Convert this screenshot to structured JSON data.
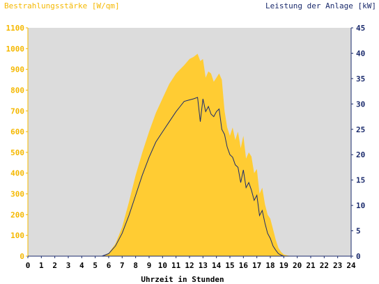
{
  "chart_data": {
    "type": "area",
    "title_left": "Bestrahlungsstärke [W/qm]",
    "title_right": "Leistung der Anlage [kW]",
    "xlabel": "Uhrzeit in Stunden",
    "xlim": [
      0,
      24
    ],
    "ylim_left": [
      0,
      1100
    ],
    "ylim_right": [
      0,
      45
    ],
    "x_ticks": [
      0,
      1,
      2,
      3,
      4,
      5,
      6,
      7,
      8,
      9,
      10,
      11,
      12,
      13,
      14,
      15,
      16,
      17,
      18,
      19,
      20,
      21,
      22,
      23,
      24
    ],
    "y_ticks_left": [
      0,
      100,
      200,
      300,
      400,
      500,
      600,
      700,
      800,
      900,
      1000,
      1100
    ],
    "y_ticks_right": [
      0,
      5,
      10,
      15,
      20,
      25,
      30,
      35,
      40,
      45
    ],
    "grid": false,
    "colors": {
      "irradiance": "#ffcc33",
      "power": "#1a2a6c",
      "plot_bg": "#dcdcdc",
      "left_axis": "#f5b800",
      "right_axis": "#1a2a6c"
    },
    "series": [
      {
        "axis": "left",
        "style": "area",
        "x": [
          0,
          5.5,
          6,
          6.5,
          7,
          7.5,
          8,
          8.5,
          9,
          9.5,
          10,
          10.5,
          11,
          11.3,
          11.6,
          12,
          12.3,
          12.6,
          12.8,
          13,
          13.2,
          13.4,
          13.6,
          13.8,
          14,
          14.2,
          14.4,
          14.6,
          14.8,
          15,
          15.2,
          15.4,
          15.6,
          15.8,
          16,
          16.2,
          16.4,
          16.6,
          16.8,
          17,
          17.2,
          17.4,
          17.6,
          17.8,
          18,
          18.2,
          18.4,
          18.6,
          18.8,
          19,
          19.3,
          19.6,
          20,
          24
        ],
        "values": [
          0,
          0,
          15,
          60,
          140,
          260,
          390,
          500,
          600,
          690,
          760,
          830,
          880,
          900,
          920,
          950,
          960,
          975,
          940,
          950,
          860,
          890,
          880,
          840,
          860,
          880,
          850,
          700,
          620,
          580,
          620,
          560,
          600,
          520,
          580,
          470,
          500,
          480,
          400,
          420,
          300,
          330,
          250,
          200,
          180,
          130,
          80,
          40,
          20,
          8,
          3,
          0,
          0,
          0
        ]
      },
      {
        "axis": "right",
        "style": "line",
        "x": [
          0,
          5.5,
          6,
          6.5,
          7,
          7.5,
          8,
          8.5,
          9,
          9.5,
          10,
          10.5,
          11,
          11.3,
          11.6,
          12,
          12.3,
          12.6,
          12.8,
          13,
          13.2,
          13.4,
          13.6,
          13.8,
          14,
          14.2,
          14.4,
          14.6,
          14.8,
          15,
          15.2,
          15.4,
          15.6,
          15.8,
          16,
          16.2,
          16.4,
          16.6,
          16.8,
          17,
          17.2,
          17.4,
          17.6,
          17.8,
          18,
          18.2,
          18.4,
          18.6,
          18.8,
          19,
          19.3,
          19.6,
          20,
          24
        ],
        "values": [
          0,
          0,
          0.5,
          2,
          4.5,
          8,
          12,
          16,
          19.5,
          22.5,
          24.5,
          26.5,
          28.5,
          29.5,
          30.5,
          30.8,
          31,
          31.3,
          26.5,
          31,
          28.5,
          29.5,
          28,
          27.5,
          28.5,
          29,
          25,
          24,
          21.5,
          20,
          19.5,
          18,
          17.5,
          14.5,
          17,
          13.5,
          14.5,
          13,
          11,
          12,
          8,
          9,
          6.5,
          4.5,
          3.5,
          2,
          1.2,
          0.5,
          0.2,
          0,
          0,
          0,
          0,
          0
        ]
      }
    ]
  }
}
